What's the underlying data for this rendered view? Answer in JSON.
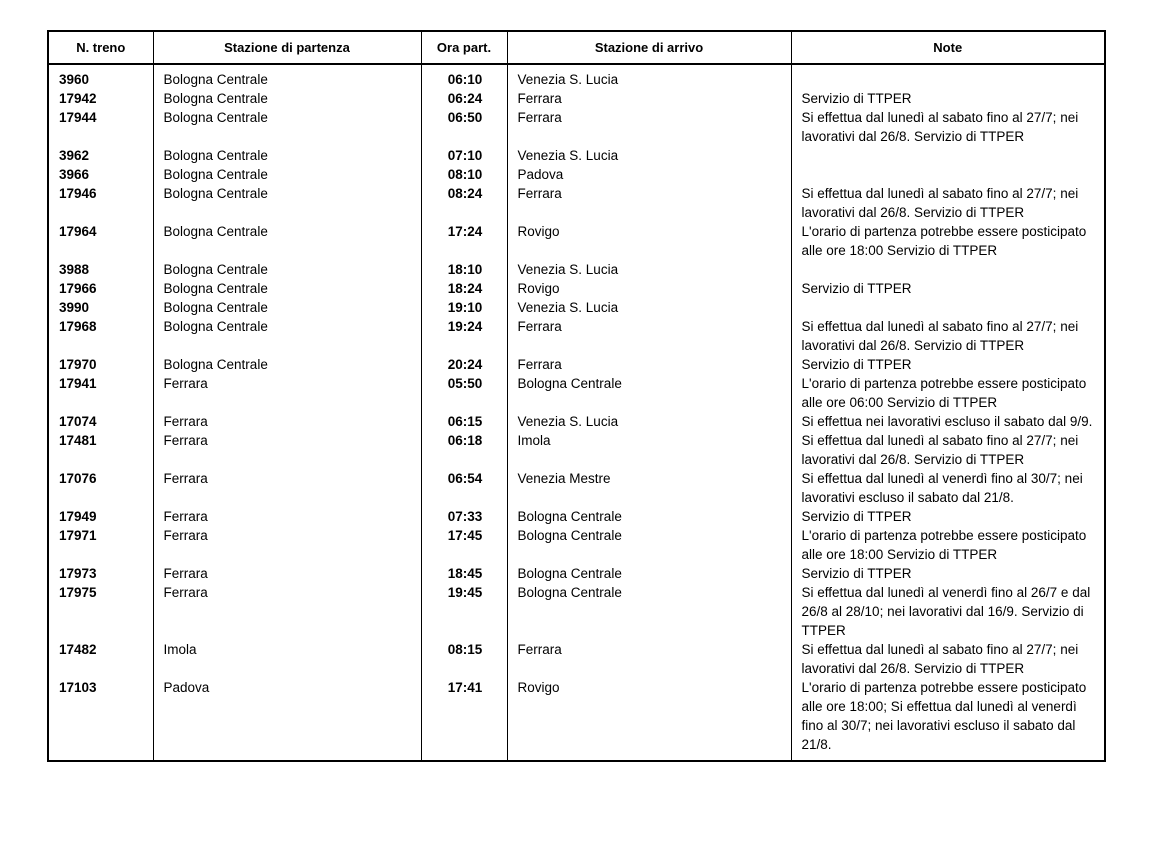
{
  "page": {
    "background": "#ffffff",
    "text_color": "#000000",
    "border_color": "#000000"
  },
  "table": {
    "headers": [
      "N. treno",
      "Stazione di partenza",
      "Ora part.",
      "Stazione di arrivo",
      "Note"
    ],
    "rows": [
      {
        "treno": "3960",
        "partenza": "Bologna Centrale",
        "ora": "06:10",
        "arrivo": "Venezia S. Lucia",
        "note": ""
      },
      {
        "treno": "17942",
        "partenza": "Bologna Centrale",
        "ora": "06:24",
        "arrivo": "Ferrara",
        "note": "Servizio di TTPER"
      },
      {
        "treno": "17944",
        "partenza": "Bologna Centrale",
        "ora": "06:50",
        "arrivo": "Ferrara",
        "note": "Si effettua dal lunedì al sabato fino al 27/7; nei lavorativi dal 26/8. Servizio di TTPER"
      },
      {
        "treno": "3962",
        "partenza": "Bologna Centrale",
        "ora": "07:10",
        "arrivo": "Venezia S. Lucia",
        "note": ""
      },
      {
        "treno": "3966",
        "partenza": "Bologna Centrale",
        "ora": "08:10",
        "arrivo": "Padova",
        "note": ""
      },
      {
        "treno": "17946",
        "partenza": "Bologna Centrale",
        "ora": "08:24",
        "arrivo": "Ferrara",
        "note": "Si effettua dal lunedì al sabato fino al 27/7; nei lavorativi dal 26/8. Servizio di TTPER"
      },
      {
        "treno": "17964",
        "partenza": "Bologna Centrale",
        "ora": "17:24",
        "arrivo": "Rovigo",
        "note": "L'orario di partenza potrebbe essere posticipato alle ore 18:00 Servizio di TTPER"
      },
      {
        "treno": "3988",
        "partenza": "Bologna Centrale",
        "ora": "18:10",
        "arrivo": "Venezia S. Lucia",
        "note": ""
      },
      {
        "treno": "17966",
        "partenza": "Bologna Centrale",
        "ora": "18:24",
        "arrivo": "Rovigo",
        "note": "Servizio di TTPER"
      },
      {
        "treno": "3990",
        "partenza": "Bologna Centrale",
        "ora": "19:10",
        "arrivo": "Venezia S. Lucia",
        "note": ""
      },
      {
        "treno": "17968",
        "partenza": "Bologna Centrale",
        "ora": "19:24",
        "arrivo": "Ferrara",
        "note": "Si effettua dal lunedì al sabato fino al 27/7; nei lavorativi dal 26/8. Servizio di TTPER"
      },
      {
        "treno": "17970",
        "partenza": "Bologna Centrale",
        "ora": "20:24",
        "arrivo": "Ferrara",
        "note": "Servizio di TTPER"
      },
      {
        "treno": "17941",
        "partenza": "Ferrara",
        "ora": "05:50",
        "arrivo": "Bologna Centrale",
        "note": "L'orario di partenza potrebbe essere posticipato alle ore 06:00 Servizio di TTPER"
      },
      {
        "treno": "17074",
        "partenza": "Ferrara",
        "ora": "06:15",
        "arrivo": "Venezia S. Lucia",
        "note": "Si effettua nei lavorativi escluso il sabato dal 9/9."
      },
      {
        "treno": "17481",
        "partenza": "Ferrara",
        "ora": "06:18",
        "arrivo": "Imola",
        "note": "Si effettua dal lunedì al sabato fino al 27/7; nei lavorativi dal 26/8. Servizio di TTPER"
      },
      {
        "treno": "17076",
        "partenza": "Ferrara",
        "ora": "06:54",
        "arrivo": "Venezia Mestre",
        "note": "Si effettua dal lunedì al venerdì fino al 30/7; nei lavorativi escluso il sabato dal 21/8.",
        "gap_after": true
      },
      {
        "treno": "17949",
        "partenza": "Ferrara",
        "ora": "07:33",
        "arrivo": "Bologna Centrale",
        "note": "Servizio di TTPER"
      },
      {
        "treno": "17971",
        "partenza": "Ferrara",
        "ora": "17:45",
        "arrivo": "Bologna Centrale",
        "note": "L'orario di partenza potrebbe essere posticipato alle ore 18:00 Servizio di TTPER"
      },
      {
        "treno": "17973",
        "partenza": "Ferrara",
        "ora": "18:45",
        "arrivo": "Bologna Centrale",
        "note": "Servizio di TTPER"
      },
      {
        "treno": "17975",
        "partenza": "Ferrara",
        "ora": "19:45",
        "arrivo": "Bologna Centrale",
        "note": "Si effettua dal lunedì al venerdì fino al 26/7 e dal 26/8 al 28/10; nei lavorativi dal 16/9. Servizio di TTPER"
      },
      {
        "treno": "17482",
        "partenza": "Imola",
        "ora": "08:15",
        "arrivo": "Ferrara",
        "note": "Si effettua dal lunedì al sabato fino al 27/7; nei lavorativi dal 26/8. Servizio di TTPER"
      },
      {
        "treno": "17103",
        "partenza": "Padova",
        "ora": "17:41",
        "arrivo": "Rovigo",
        "note": "L'orario di partenza potrebbe essere posticipato alle ore 18:00; Si effettua dal lunedì al venerdì fino al 30/7; nei lavorativi escluso il sabato dal 21/8."
      }
    ]
  }
}
